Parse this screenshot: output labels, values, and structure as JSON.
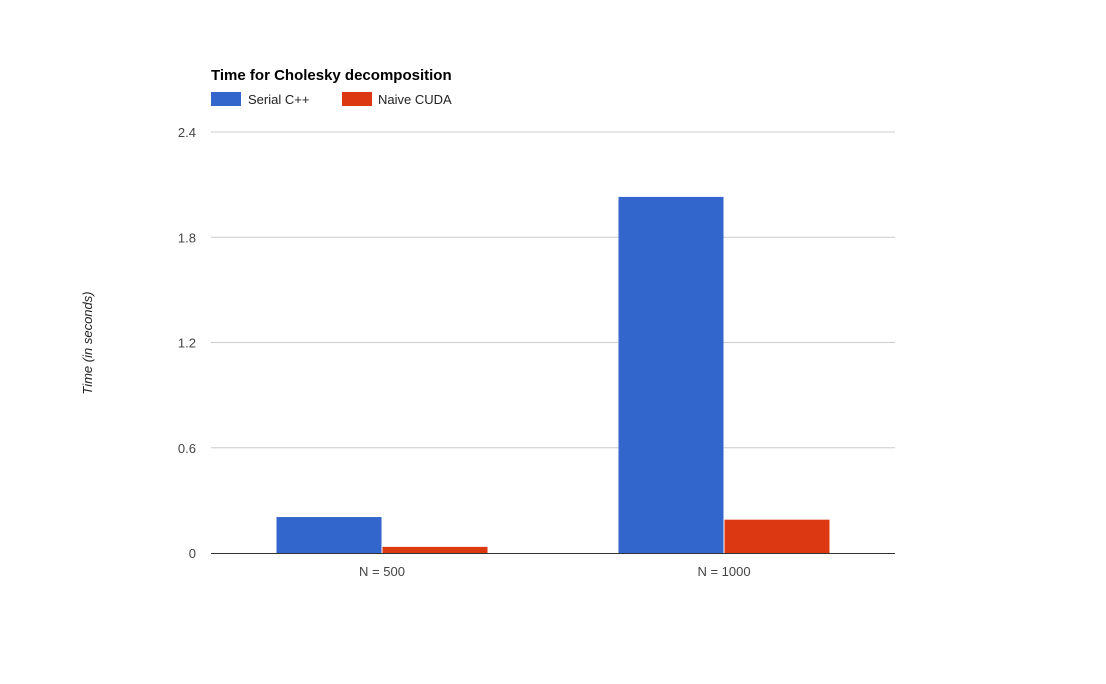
{
  "chart_data": {
    "type": "bar",
    "title": "Time for Cholesky decomposition",
    "xlabel": "",
    "ylabel": "Time (in seconds)",
    "categories": [
      "N = 500",
      "N = 1000"
    ],
    "series": [
      {
        "name": "Serial C++",
        "values": [
          0.205,
          2.03
        ],
        "color": "#3366cc"
      },
      {
        "name": "Naive CUDA",
        "values": [
          0.035,
          0.19
        ],
        "color": "#dc3912"
      }
    ],
    "ylim": [
      0,
      2.4
    ],
    "yticks": [
      "0",
      "0.6",
      "1.2",
      "1.8",
      "2.4"
    ],
    "ytick_values": [
      0,
      0.6,
      1.2,
      1.8,
      2.4
    ],
    "grid": true,
    "legend_position": "top-left"
  },
  "colors": {
    "grid": "#cccccc",
    "baseline": "#333333"
  }
}
